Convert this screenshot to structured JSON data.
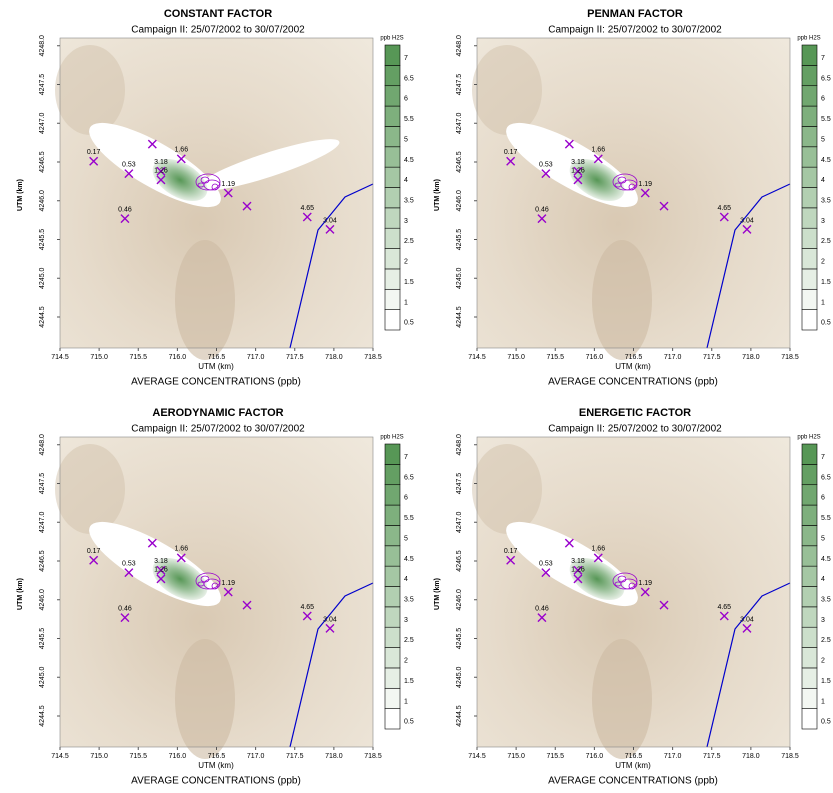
{
  "chart_data": [
    {
      "type": "contour",
      "title": "CONSTANT FACTOR",
      "subtitle": "Campaign II: 25/07/2002 to 30/07/2002",
      "xlabel": "UTM (km)",
      "ylabel": "UTM (km)",
      "caption": "AVERAGE CONCENTRATIONS (ppb)",
      "xlim": [
        714.5,
        718.5
      ],
      "xticks": [
        714.5,
        {
          "value": 715,
          "label": "715.0"
        },
        715.5,
        {
          "value": 716,
          "label": "716.0"
        },
        716.5,
        {
          "value": 717,
          "label": "717.0"
        },
        717.5,
        {
          "value": 718,
          "label": "718.0"
        },
        718.5
      ],
      "ylim": [
        4244.1,
        4248.1
      ],
      "yticks": [
        4244.5,
        {
          "value": 4245,
          "label": "4245.0"
        },
        4245.5,
        {
          "value": 4246,
          "label": "4246.0"
        },
        4246.5,
        {
          "value": 4247,
          "label": "4247.0"
        },
        4247.5,
        {
          "value": 4248,
          "label": "4248.0"
        }
      ],
      "colorbar_label": "ppb H2S",
      "levels": [
        0.5,
        1,
        1.5,
        2,
        2.5,
        3,
        3.5,
        4,
        4.5,
        5,
        5.5,
        6,
        6.5,
        7
      ],
      "level_colors": [
        "#ffffff",
        "#f3f7f2",
        "#e6efe5",
        "#d9e7d8",
        "#ccdfcb",
        "#bfd7be",
        "#b2cfb1",
        "#a5c7a4",
        "#98bf97",
        "#8bb78a",
        "#7eaf7d",
        "#71a770",
        "#649f63",
        "#579756"
      ],
      "stations": {
        "x": [
          714.93,
          715.38,
          715.33,
          715.68,
          715.79,
          715.79,
          716.05,
          716.65,
          716.89,
          717.66,
          717.95
        ],
        "y": [
          4246.51,
          4246.35,
          4245.77,
          4246.73,
          4246.38,
          4246.27,
          4246.54,
          4246.1,
          4245.93,
          4245.79,
          4245.63
        ],
        "values": [
          0.17,
          0.53,
          0.46,
          null,
          3.18,
          1.26,
          1.66,
          1.19,
          null,
          4.65,
          3.04
        ],
        "color": "#9900cc"
      }
    },
    {
      "type": "contour",
      "title": "PENMAN FACTOR",
      "subtitle": "Campaign II: 25/07/2002 to 30/07/2002",
      "xlabel": "UTM (km)",
      "ylabel": "UTM (km)",
      "caption": "AVERAGE CONCENTRATIONS (ppb)",
      "xlim": [
        714.5,
        718.5
      ],
      "xticks": [
        714.5,
        {
          "value": 715,
          "label": "715.0"
        },
        715.5,
        {
          "value": 716,
          "label": "716.0"
        },
        716.5,
        {
          "value": 717,
          "label": "717.0"
        },
        717.5,
        {
          "value": 718,
          "label": "718.0"
        },
        718.5
      ],
      "ylim": [
        4244.1,
        4248.1
      ],
      "yticks": [
        4244.5,
        {
          "value": 4245,
          "label": "4245.0"
        },
        4245.5,
        {
          "value": 4246,
          "label": "4246.0"
        },
        4246.5,
        {
          "value": 4247,
          "label": "4247.0"
        },
        4247.5,
        {
          "value": 4248,
          "label": "4248.0"
        }
      ],
      "colorbar_label": "ppb H2S",
      "levels": [
        0.5,
        1,
        1.5,
        2,
        2.5,
        3,
        3.5,
        4,
        4.5,
        5,
        5.5,
        6,
        6.5,
        7
      ],
      "level_colors": [
        "#ffffff",
        "#f3f7f2",
        "#e6efe5",
        "#d9e7d8",
        "#ccdfcb",
        "#bfd7be",
        "#b2cfb1",
        "#a5c7a4",
        "#98bf97",
        "#8bb78a",
        "#7eaf7d",
        "#71a770",
        "#649f63",
        "#579756"
      ],
      "stations": {
        "x": [
          714.93,
          715.38,
          715.33,
          715.68,
          715.79,
          715.79,
          716.05,
          716.65,
          716.89,
          717.66,
          717.95
        ],
        "y": [
          4246.51,
          4246.35,
          4245.77,
          4246.73,
          4246.38,
          4246.27,
          4246.54,
          4246.1,
          4245.93,
          4245.79,
          4245.63
        ],
        "values": [
          0.17,
          0.53,
          0.46,
          null,
          3.18,
          1.26,
          1.66,
          1.19,
          null,
          4.65,
          3.04
        ],
        "color": "#9900cc"
      }
    },
    {
      "type": "contour",
      "title": "AERODYNAMIC FACTOR",
      "subtitle": "Campaign II: 25/07/2002 to 30/07/2002",
      "xlabel": "UTM (km)",
      "ylabel": "UTM (km)",
      "caption": "AVERAGE CONCENTRATIONS (ppb)",
      "xlim": [
        714.5,
        718.5
      ],
      "xticks": [
        714.5,
        {
          "value": 715,
          "label": "715.0"
        },
        715.5,
        {
          "value": 716,
          "label": "716.0"
        },
        716.5,
        {
          "value": 717,
          "label": "717.0"
        },
        717.5,
        {
          "value": 718,
          "label": "718.0"
        },
        718.5
      ],
      "ylim": [
        4244.1,
        4248.1
      ],
      "yticks": [
        4244.5,
        {
          "value": 4245,
          "label": "4245.0"
        },
        4245.5,
        {
          "value": 4246,
          "label": "4246.0"
        },
        4246.5,
        {
          "value": 4247,
          "label": "4247.0"
        },
        4247.5,
        {
          "value": 4248,
          "label": "4248.0"
        }
      ],
      "colorbar_label": "ppb H2S",
      "levels": [
        0.5,
        1,
        1.5,
        2,
        2.5,
        3,
        3.5,
        4,
        4.5,
        5,
        5.5,
        6,
        6.5,
        7
      ],
      "level_colors": [
        "#ffffff",
        "#f3f7f2",
        "#e6efe5",
        "#d9e7d8",
        "#ccdfcb",
        "#bfd7be",
        "#b2cfb1",
        "#a5c7a4",
        "#98bf97",
        "#8bb78a",
        "#7eaf7d",
        "#71a770",
        "#649f63",
        "#579756"
      ],
      "stations": {
        "x": [
          714.93,
          715.38,
          715.33,
          715.68,
          715.79,
          715.79,
          716.05,
          716.65,
          716.89,
          717.66,
          717.95
        ],
        "y": [
          4246.51,
          4246.35,
          4245.77,
          4246.73,
          4246.38,
          4246.27,
          4246.54,
          4246.1,
          4245.93,
          4245.79,
          4245.63
        ],
        "values": [
          0.17,
          0.53,
          0.46,
          null,
          3.18,
          1.26,
          1.66,
          1.19,
          null,
          4.65,
          3.04
        ],
        "color": "#9900cc"
      }
    },
    {
      "type": "contour",
      "title": "ENERGETIC FACTOR",
      "subtitle": "Campaign II: 25/07/2002 to 30/07/2002",
      "xlabel": "UTM (km)",
      "ylabel": "UTM (km)",
      "caption": "AVERAGE CONCENTRATIONS (ppb)",
      "xlim": [
        714.5,
        718.5
      ],
      "xticks": [
        714.5,
        {
          "value": 715,
          "label": "715.0"
        },
        715.5,
        {
          "value": 716,
          "label": "716.0"
        },
        716.5,
        {
          "value": 717,
          "label": "717.0"
        },
        717.5,
        {
          "value": 718,
          "label": "718.0"
        },
        718.5
      ],
      "ylim": [
        4244.1,
        4248.1
      ],
      "yticks": [
        4244.5,
        {
          "value": 4245,
          "label": "4245.0"
        },
        4245.5,
        {
          "value": 4246,
          "label": "4246.0"
        },
        4246.5,
        {
          "value": 4247,
          "label": "4247.0"
        },
        4247.5,
        {
          "value": 4248,
          "label": "4248.0"
        }
      ],
      "colorbar_label": "ppb H2S",
      "levels": [
        0.5,
        1,
        1.5,
        2,
        2.5,
        3,
        3.5,
        4,
        4.5,
        5,
        5.5,
        6,
        6.5,
        7
      ],
      "level_colors": [
        "#ffffff",
        "#f3f7f2",
        "#e6efe5",
        "#d9e7d8",
        "#ccdfcb",
        "#bfd7be",
        "#b2cfb1",
        "#a5c7a4",
        "#98bf97",
        "#8bb78a",
        "#7eaf7d",
        "#71a770",
        "#649f63",
        "#579756"
      ],
      "stations": {
        "x": [
          714.93,
          715.38,
          715.33,
          715.68,
          715.79,
          715.79,
          716.05,
          716.65,
          716.89,
          717.66,
          717.95
        ],
        "y": [
          4246.51,
          4246.35,
          4245.77,
          4246.73,
          4246.38,
          4246.27,
          4246.54,
          4246.1,
          4245.93,
          4245.79,
          4245.63
        ],
        "values": [
          0.17,
          0.53,
          0.46,
          null,
          3.18,
          1.26,
          1.66,
          1.19,
          null,
          4.65,
          3.04
        ],
        "color": "#9900cc"
      }
    }
  ]
}
